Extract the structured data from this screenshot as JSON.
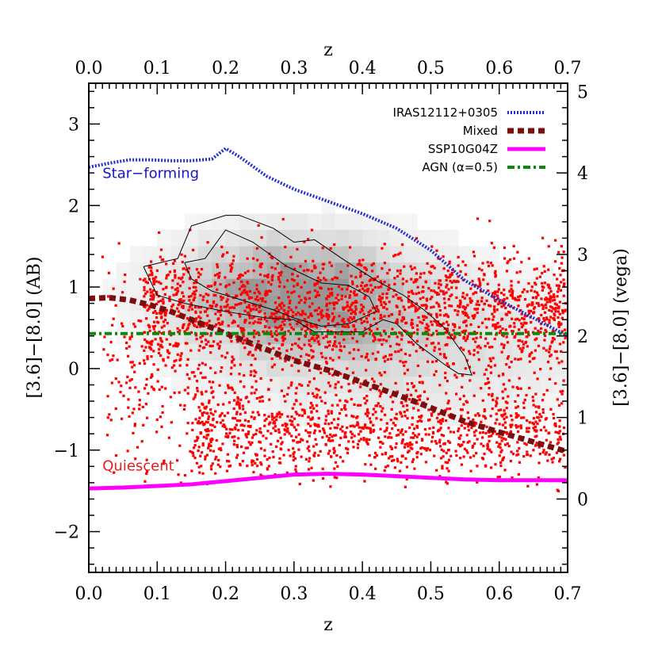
{
  "chart_data": {
    "type": "scatter",
    "title": "",
    "xlabel": "z",
    "top_xlabel": "z",
    "ylabel": "[3.6]−[8.0] (AB)",
    "right_ylabel": "[3.6]−[8.0] (vega)",
    "xlim": [
      0.0,
      0.7
    ],
    "ylim": [
      -2.5,
      3.5
    ],
    "right_ylim": [
      -0.9,
      5.1
    ],
    "x_ticks": [
      "0.0",
      "0.1",
      "0.2",
      "0.3",
      "0.4",
      "0.5",
      "0.6",
      "0.7"
    ],
    "x_tick_values": [
      0.0,
      0.1,
      0.2,
      0.3,
      0.4,
      0.5,
      0.6,
      0.7
    ],
    "y_ticks": [
      "−2",
      "−1",
      "0",
      "1",
      "2",
      "3"
    ],
    "y_tick_values": [
      -2,
      -1,
      0,
      1,
      2,
      3
    ],
    "right_y_ticks": [
      "0",
      "1",
      "2",
      "3",
      "4",
      "5"
    ],
    "right_y_tick_values": [
      0,
      1,
      2,
      3,
      4,
      5
    ],
    "grid": false,
    "legend_position": "top-right",
    "legend": [
      {
        "label": "IRAS12112+0305",
        "color": "#1f2fd0",
        "style": "dotted"
      },
      {
        "label": "Mixed",
        "color": "#7a0d0d",
        "style": "dashed"
      },
      {
        "label": "SSP10G04Z",
        "color": "#ff00ff",
        "style": "solid"
      },
      {
        "label": "AGN (α=0.5)",
        "color": "#0a8a0a",
        "style": "dashdot"
      }
    ],
    "annotations": [
      {
        "text": "Star−forming",
        "color": "#1414c8",
        "x": 0.02,
        "y": 2.34
      },
      {
        "text": "Quiescent",
        "color": "#e0201a",
        "x": 0.02,
        "y": -1.25
      }
    ],
    "series": [
      {
        "name": "IRAS12112+0305",
        "color": "#1f2fd0",
        "x": [
          0.0,
          0.03,
          0.06,
          0.09,
          0.12,
          0.15,
          0.18,
          0.2,
          0.22,
          0.26,
          0.3,
          0.35,
          0.4,
          0.45,
          0.5,
          0.55,
          0.6,
          0.65,
          0.7
        ],
        "y": [
          2.47,
          2.52,
          2.56,
          2.56,
          2.55,
          2.55,
          2.57,
          2.7,
          2.6,
          2.36,
          2.2,
          2.05,
          1.9,
          1.72,
          1.45,
          1.08,
          0.84,
          0.62,
          0.4
        ]
      },
      {
        "name": "Mixed",
        "color": "#7a0d0d",
        "x": [
          0.0,
          0.03,
          0.06,
          0.09,
          0.12,
          0.15,
          0.18,
          0.21,
          0.24,
          0.27,
          0.3,
          0.35,
          0.4,
          0.45,
          0.5,
          0.55,
          0.6,
          0.65,
          0.7
        ],
        "y": [
          0.86,
          0.87,
          0.84,
          0.78,
          0.7,
          0.6,
          0.5,
          0.4,
          0.3,
          0.2,
          0.1,
          -0.02,
          -0.17,
          -0.32,
          -0.48,
          -0.65,
          -0.78,
          -0.9,
          -1.02
        ]
      },
      {
        "name": "SSP10G04Z",
        "color": "#ff00ff",
        "x": [
          0.0,
          0.05,
          0.1,
          0.15,
          0.2,
          0.25,
          0.3,
          0.35,
          0.4,
          0.45,
          0.5,
          0.55,
          0.6,
          0.65,
          0.7
        ],
        "y": [
          -1.47,
          -1.46,
          -1.44,
          -1.42,
          -1.38,
          -1.34,
          -1.3,
          -1.29,
          -1.3,
          -1.32,
          -1.34,
          -1.36,
          -1.37,
          -1.37,
          -1.37
        ]
      },
      {
        "name": "AGN (α=0.5)",
        "color": "#0a8a0a",
        "x": [
          0.0,
          0.7
        ],
        "y": [
          0.43,
          0.43
        ]
      }
    ],
    "contours": [
      {
        "level": "outer",
        "x": [
          0.08,
          0.13,
          0.14,
          0.15,
          0.2,
          0.22,
          0.27,
          0.3,
          0.33,
          0.37,
          0.42,
          0.46,
          0.49,
          0.52,
          0.55,
          0.56,
          0.54,
          0.52,
          0.48,
          0.45,
          0.43,
          0.4,
          0.33,
          0.3,
          0.26,
          0.2,
          0.14,
          0.1,
          0.08
        ],
        "y": [
          1.25,
          1.35,
          1.55,
          1.75,
          1.88,
          1.88,
          1.72,
          1.55,
          1.58,
          1.35,
          1.08,
          0.9,
          0.72,
          0.5,
          0.15,
          -0.08,
          -0.06,
          0.05,
          0.3,
          0.55,
          0.6,
          0.45,
          0.45,
          0.6,
          0.62,
          0.7,
          0.8,
          0.9,
          1.25
        ]
      },
      {
        "level": "inner",
        "x": [
          0.14,
          0.17,
          0.2,
          0.24,
          0.29,
          0.34,
          0.38,
          0.41,
          0.42,
          0.38,
          0.34,
          0.3,
          0.27,
          0.22,
          0.18,
          0.15,
          0.14
        ],
        "y": [
          1.3,
          1.35,
          1.7,
          1.55,
          1.25,
          1.05,
          1.02,
          0.88,
          0.7,
          0.55,
          0.52,
          0.62,
          0.72,
          0.85,
          0.95,
          1.1,
          1.3
        ]
      }
    ],
    "scatter_color": "#ff0000",
    "density_map": "grey 2D histogram of z vs color, darkest near z 0.22–0.38, color 0.5–1.4"
  }
}
